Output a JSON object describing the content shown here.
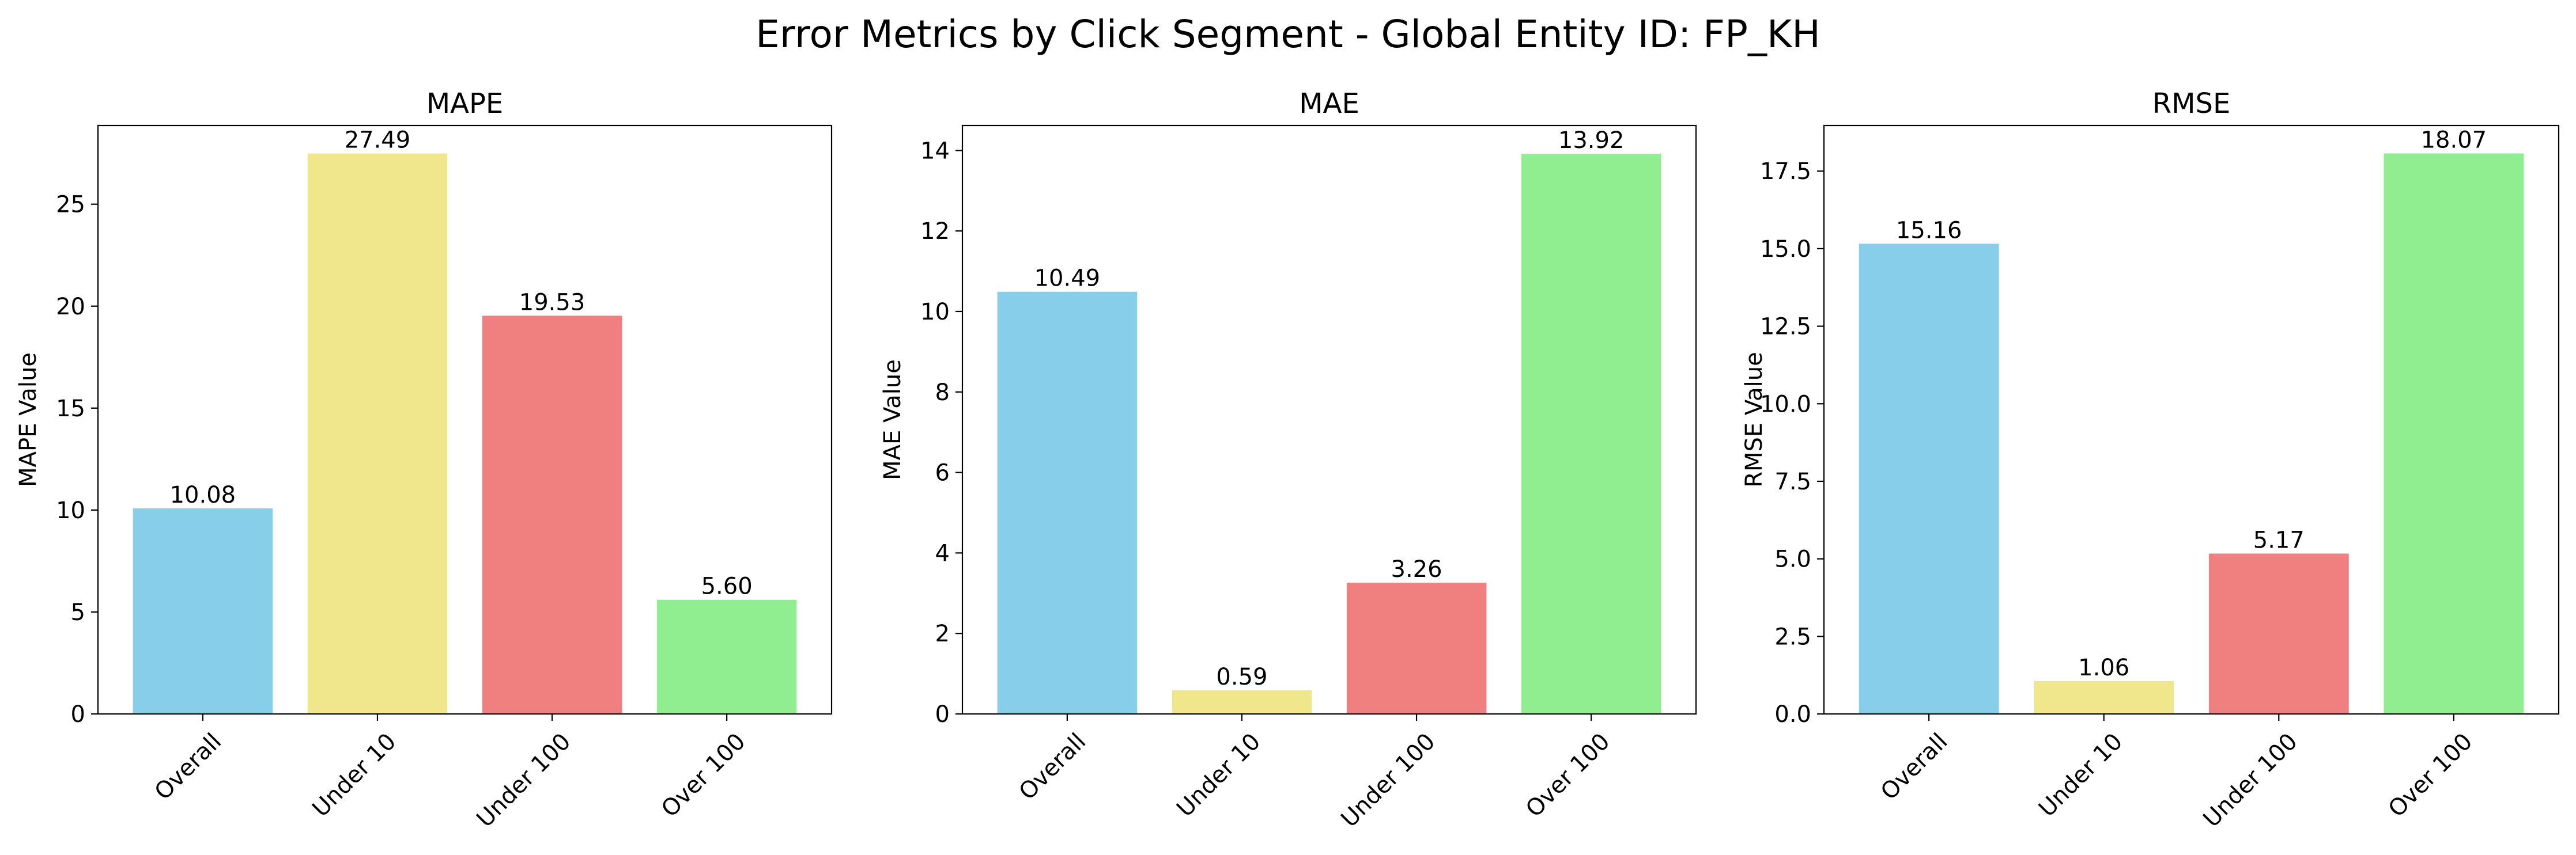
{
  "figure": {
    "title": "Error Metrics by Click Segment - Global Entity ID: FP_KH"
  },
  "colors": {
    "bars": [
      "#87ceeb",
      "#f0e68c",
      "#f08080",
      "#90ee90"
    ],
    "axes": "#000000",
    "background": "#ffffff"
  },
  "chart_data": [
    {
      "type": "bar",
      "title": "MAPE",
      "xlabel": "",
      "ylabel": "MAPE Value",
      "categories": [
        "Overall",
        "Under 10",
        "Under 100",
        "Over 100"
      ],
      "values": [
        10.08,
        27.49,
        19.53,
        5.6
      ],
      "value_labels": [
        "10.08",
        "27.49",
        "19.53",
        "5.60"
      ],
      "ylim": [
        0,
        28.86
      ],
      "yticks": [
        0,
        5,
        10,
        15,
        20,
        25
      ],
      "ytick_labels": [
        "0",
        "5",
        "10",
        "15",
        "20",
        "25"
      ],
      "grid": false,
      "legend": "none"
    },
    {
      "type": "bar",
      "title": "MAE",
      "xlabel": "",
      "ylabel": "MAE Value",
      "categories": [
        "Overall",
        "Under 10",
        "Under 100",
        "Over 100"
      ],
      "values": [
        10.49,
        0.59,
        3.26,
        13.92
      ],
      "value_labels": [
        "10.49",
        "0.59",
        "3.26",
        "13.92"
      ],
      "ylim": [
        0,
        14.62
      ],
      "yticks": [
        0,
        2,
        4,
        6,
        8,
        10,
        12,
        14
      ],
      "ytick_labels": [
        "0",
        "2",
        "4",
        "6",
        "8",
        "10",
        "12",
        "14"
      ],
      "grid": false,
      "legend": "none"
    },
    {
      "type": "bar",
      "title": "RMSE",
      "xlabel": "",
      "ylabel": "RMSE Value",
      "categories": [
        "Overall",
        "Under 10",
        "Under 100",
        "Over 100"
      ],
      "values": [
        15.16,
        1.06,
        5.17,
        18.07
      ],
      "value_labels": [
        "15.16",
        "1.06",
        "5.17",
        "18.07"
      ],
      "ylim": [
        0,
        18.97
      ],
      "yticks": [
        0,
        2.5,
        5,
        7.5,
        10,
        12.5,
        15,
        17.5
      ],
      "ytick_labels": [
        "0.0",
        "2.5",
        "5.0",
        "7.5",
        "10.0",
        "12.5",
        "15.0",
        "17.5"
      ],
      "grid": false,
      "legend": "none"
    }
  ]
}
